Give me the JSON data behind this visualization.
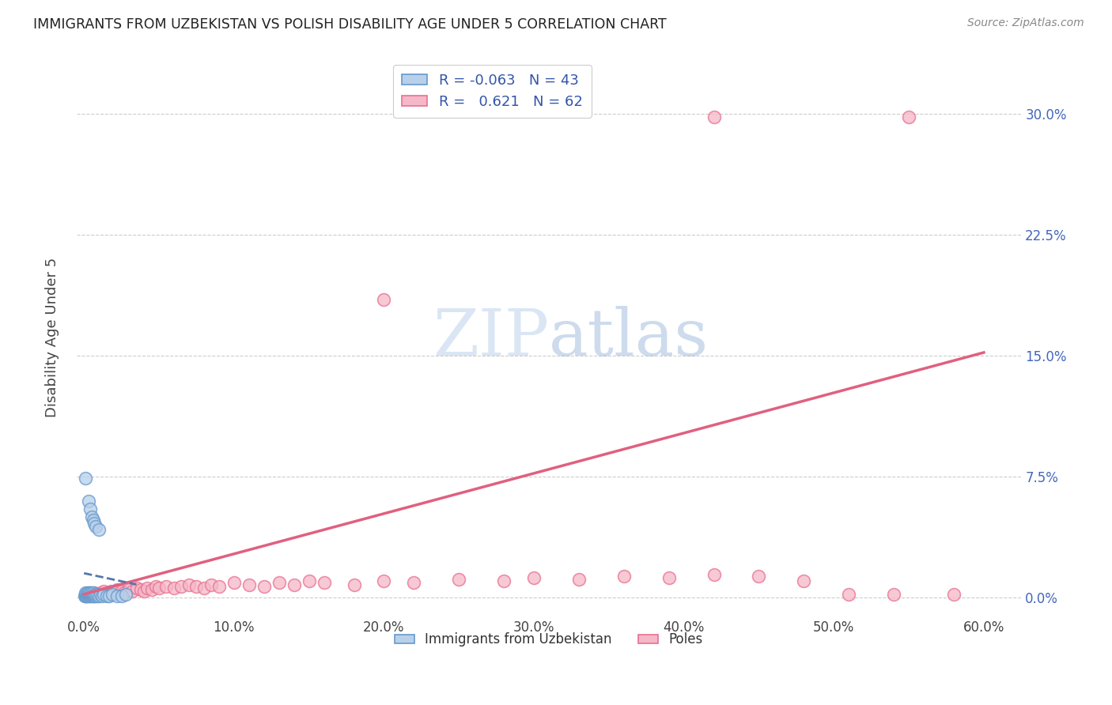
{
  "title": "IMMIGRANTS FROM UZBEKISTAN VS POLISH DISABILITY AGE UNDER 5 CORRELATION CHART",
  "source": "Source: ZipAtlas.com",
  "ylabel": "Disability Age Under 5",
  "xlim": [
    -0.005,
    0.625
  ],
  "ylim": [
    -0.012,
    0.335
  ],
  "legend_r_uzbek": "-0.063",
  "legend_n_uzbek": "43",
  "legend_r_poles": "0.621",
  "legend_n_poles": "62",
  "uzbek_fill": "#b8d0ea",
  "uzbek_edge": "#6699cc",
  "poles_fill": "#f5b8c8",
  "poles_edge": "#e87090",
  "uzbek_line_color": "#5577aa",
  "poles_line_color": "#e06080",
  "title_color": "#222222",
  "source_color": "#888888",
  "right_tick_color": "#4466bb",
  "legend_label_color": "#3355aa",
  "watermark_color": "#ccddf0",
  "grid_color": "#cccccc",
  "uzbek_x": [
    0.0005,
    0.001,
    0.001,
    0.001,
    0.0015,
    0.002,
    0.002,
    0.002,
    0.0025,
    0.003,
    0.003,
    0.003,
    0.004,
    0.004,
    0.004,
    0.005,
    0.005,
    0.005,
    0.006,
    0.006,
    0.007,
    0.007,
    0.008,
    0.008,
    0.009,
    0.01,
    0.011,
    0.012,
    0.013,
    0.015,
    0.017,
    0.019,
    0.022,
    0.025,
    0.028,
    0.001,
    0.003,
    0.004,
    0.005,
    0.006,
    0.007,
    0.008,
    0.01
  ],
  "uzbek_y": [
    0.001,
    0.001,
    0.002,
    0.003,
    0.001,
    0.001,
    0.002,
    0.003,
    0.002,
    0.001,
    0.002,
    0.003,
    0.001,
    0.002,
    0.003,
    0.001,
    0.002,
    0.003,
    0.001,
    0.003,
    0.001,
    0.002,
    0.001,
    0.002,
    0.002,
    0.001,
    0.002,
    0.001,
    0.002,
    0.001,
    0.001,
    0.002,
    0.001,
    0.001,
    0.002,
    0.074,
    0.06,
    0.055,
    0.05,
    0.048,
    0.046,
    0.044,
    0.042
  ],
  "poles_x": [
    0.001,
    0.002,
    0.003,
    0.004,
    0.005,
    0.006,
    0.007,
    0.008,
    0.009,
    0.01,
    0.011,
    0.012,
    0.013,
    0.015,
    0.016,
    0.018,
    0.02,
    0.022,
    0.025,
    0.027,
    0.03,
    0.032,
    0.035,
    0.038,
    0.04,
    0.042,
    0.045,
    0.048,
    0.05,
    0.055,
    0.06,
    0.065,
    0.07,
    0.075,
    0.08,
    0.085,
    0.09,
    0.1,
    0.11,
    0.12,
    0.13,
    0.14,
    0.15,
    0.16,
    0.18,
    0.2,
    0.22,
    0.25,
    0.28,
    0.3,
    0.33,
    0.36,
    0.39,
    0.42,
    0.45,
    0.48,
    0.51,
    0.54,
    0.58,
    0.2,
    0.42,
    0.55
  ],
  "poles_y": [
    0.001,
    0.002,
    0.001,
    0.003,
    0.002,
    0.001,
    0.003,
    0.002,
    0.001,
    0.002,
    0.003,
    0.002,
    0.004,
    0.003,
    0.002,
    0.004,
    0.003,
    0.005,
    0.004,
    0.003,
    0.005,
    0.004,
    0.006,
    0.005,
    0.004,
    0.006,
    0.005,
    0.007,
    0.006,
    0.007,
    0.006,
    0.007,
    0.008,
    0.007,
    0.006,
    0.008,
    0.007,
    0.009,
    0.008,
    0.007,
    0.009,
    0.008,
    0.01,
    0.009,
    0.008,
    0.01,
    0.009,
    0.011,
    0.01,
    0.012,
    0.011,
    0.013,
    0.012,
    0.014,
    0.013,
    0.01,
    0.002,
    0.002,
    0.002,
    0.185,
    0.298,
    0.298
  ],
  "poles_trendline_x": [
    0.0,
    0.6
  ],
  "poles_trendline_y": [
    0.002,
    0.152
  ],
  "uzbek_trendline_x": [
    0.0,
    0.035
  ],
  "uzbek_trendline_y": [
    0.015,
    0.008
  ]
}
